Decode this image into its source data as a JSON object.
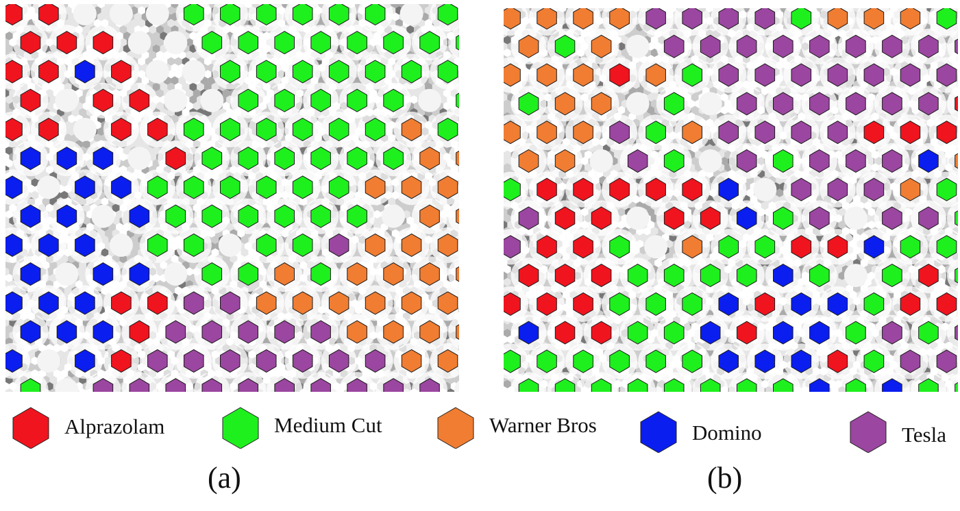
{
  "colors": {
    "alprazolam": "#f0141e",
    "medium_cut": "#1ef01e",
    "warner_bros": "#f07d32",
    "domino": "#0a1ef0",
    "tesla": "#9b46a0",
    "background_grey": "#d6d6d6"
  },
  "legend": [
    {
      "key": "alprazolam",
      "label": "Alprazolam"
    },
    {
      "key": "medium_cut",
      "label": "Medium Cut"
    },
    {
      "key": "warner_bros",
      "label": "Warner Bros"
    },
    {
      "key": "domino",
      "label": "Domino"
    },
    {
      "key": "tesla",
      "label": "Tesla"
    }
  ],
  "captions": {
    "a": "(a)",
    "b": "(b)"
  },
  "panels": {
    "a": {
      "description_icon": "hexagonal-self-organizing-map",
      "rows": [
        "RRCCCGGGGGGCG",
        "RRRCCGGGGGGGG",
        "RRDRCCGGGGGGG",
        "RCRRCCGGGGGCG",
        "RRCRRGGGGGGWG",
        "DDDCRGGGGGGWW",
        "DCDDGGGGGGWWW",
        "DDCDGGGGGGCWW",
        "DDDCGGCGGTWWW",
        "DCDDCGGWGWWWW",
        "DDDRRTTWWWWWW",
        "DDDRTTTTTWWWW",
        "DCDRTTTTTTTWW",
        "GCTTTTTTTTTTC"
      ]
    },
    "b": {
      "description_icon": "hexagonal-self-organizing-map",
      "rows": [
        "WWWWTTTTGWWWG",
        "WGWCTTTTTTTTT",
        "WWWRWGTTTTTTT",
        "GWWCGCTTTTTTR",
        "WWWTGWTTTTRRR",
        "WWCTGCTGTTTDW",
        "GRRRRRDCTTTWG",
        "TRRCRRDGTCTTG",
        "TRRGCWGGRRDGG",
        "RRRGGGGDGCGRG",
        "RRRGGGDRDDGRR",
        "DRRGGDRDDGTGT",
        "GGGGGGDDDRGTT",
        "GGGGGGGGDGDGG"
      ]
    }
  }
}
